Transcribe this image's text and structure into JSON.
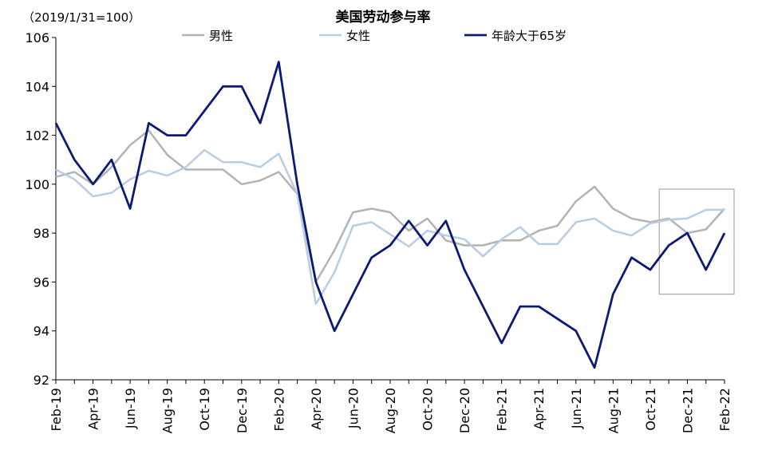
{
  "chart_data": {
    "type": "line",
    "title": "美国劳动参与率",
    "subtitle": "（2019/1/31=100）",
    "xlabel": "",
    "ylabel": "",
    "ylim": [
      92,
      106
    ],
    "yticks": [
      "92",
      "94",
      "96",
      "98",
      "100",
      "102",
      "104",
      "106"
    ],
    "x": [
      "Feb-19",
      "Mar-19",
      "Apr-19",
      "May-19",
      "Jun-19",
      "Jul-19",
      "Aug-19",
      "Sep-19",
      "Oct-19",
      "Nov-19",
      "Dec-19",
      "Jan-20",
      "Feb-20",
      "Mar-20",
      "Apr-20",
      "May-20",
      "Jun-20",
      "Jul-20",
      "Aug-20",
      "Sep-20",
      "Oct-20",
      "Nov-20",
      "Dec-20",
      "Jan-21",
      "Feb-21",
      "Mar-21",
      "Apr-21",
      "May-21",
      "Jun-21",
      "Jul-21",
      "Aug-21",
      "Sep-21",
      "Oct-21",
      "Nov-21",
      "Dec-21",
      "Jan-22",
      "Feb-22"
    ],
    "x_tick_labels": [
      "Feb-19",
      "Apr-19",
      "Jun-19",
      "Aug-19",
      "Oct-19",
      "Dec-19",
      "Feb-20",
      "Apr-20",
      "Jun-20",
      "Aug-20",
      "Oct-20",
      "Dec-20",
      "Feb-21",
      "Apr-21",
      "Jun-21",
      "Aug-21",
      "Oct-21",
      "Dec-21",
      "Feb-22"
    ],
    "legend_position": "top",
    "grid": false,
    "series": [
      {
        "name": "男性",
        "color": "#b3b3b3",
        "values": [
          100.3,
          100.5,
          100.0,
          100.7,
          101.6,
          102.2,
          101.2,
          100.6,
          100.6,
          100.6,
          100.0,
          100.15,
          100.5,
          99.6,
          96.0,
          97.3,
          98.85,
          99.0,
          98.85,
          98.1,
          98.6,
          97.7,
          97.5,
          97.5,
          97.7,
          97.7,
          98.1,
          98.3,
          99.3,
          99.9,
          99.0,
          98.6,
          98.45,
          98.6,
          98.0,
          98.15,
          99.0
        ]
      },
      {
        "name": "女性",
        "color": "#b7cde3",
        "values": [
          100.6,
          100.2,
          99.5,
          99.65,
          100.2,
          100.55,
          100.35,
          100.7,
          101.4,
          100.9,
          100.9,
          100.7,
          101.25,
          99.6,
          95.1,
          96.4,
          98.3,
          98.45,
          97.95,
          97.45,
          98.1,
          97.9,
          97.75,
          97.05,
          97.75,
          98.25,
          97.55,
          97.55,
          98.45,
          98.6,
          98.1,
          97.9,
          98.4,
          98.55,
          98.6,
          98.95,
          98.95
        ]
      },
      {
        "name": "年龄大于65岁",
        "color": "#0d1a73",
        "values": [
          102.5,
          101.0,
          100.0,
          101.0,
          99.0,
          102.5,
          102.0,
          102.0,
          103.0,
          104.0,
          104.0,
          102.5,
          105.0,
          100.0,
          96.0,
          94.0,
          95.5,
          97.0,
          97.5,
          98.5,
          97.5,
          98.5,
          96.5,
          95.0,
          93.5,
          95.0,
          95.0,
          94.5,
          94.0,
          92.5,
          95.5,
          97.0,
          96.5,
          97.5,
          98.0,
          96.5,
          98.0
        ]
      }
    ]
  },
  "annotation_box": {
    "from_index": 33,
    "to_index": 36,
    "y_range": [
      95.5,
      99.8
    ],
    "color": "#999999"
  }
}
